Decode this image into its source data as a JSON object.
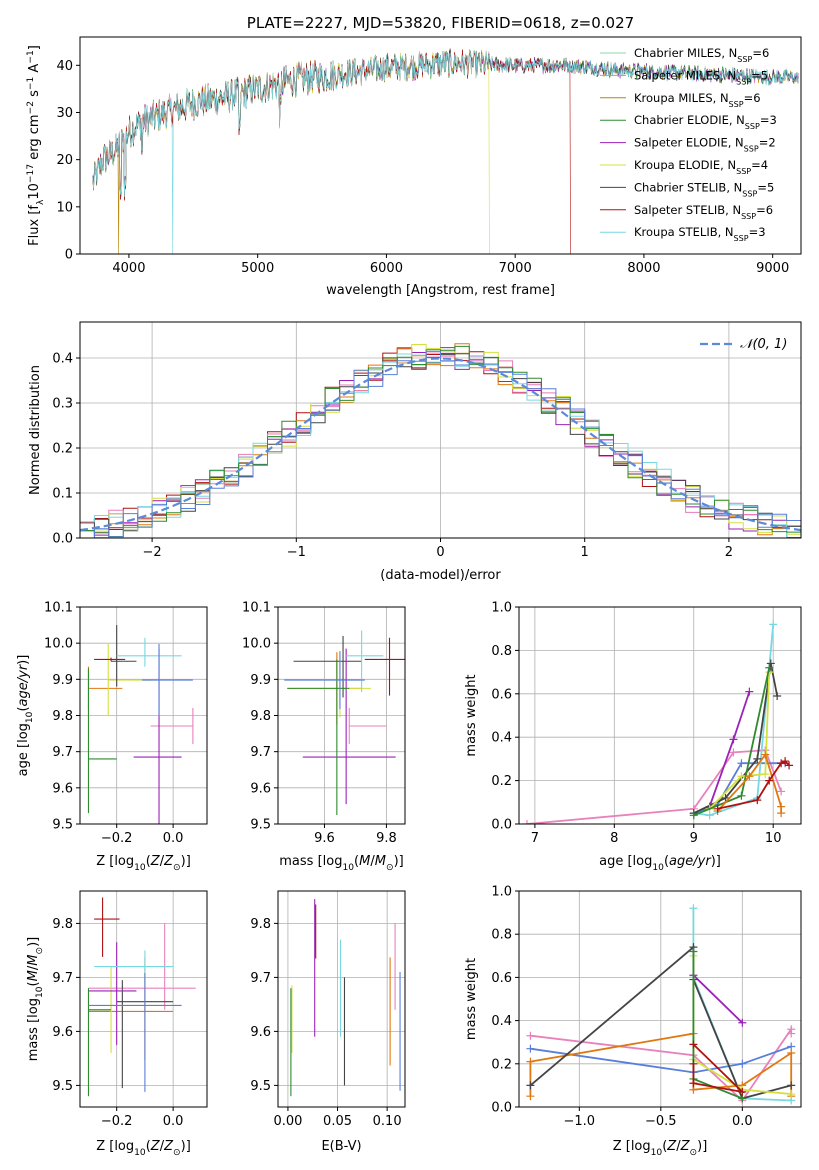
{
  "colors": {
    "chabrier_miles": "#8fd4a8",
    "salpeter_miles": "#e87ab8",
    "kroupa_miles": "#b8860b",
    "chabrier_elodie": "#2e8b2e",
    "salpeter_elodie": "#9b22b8",
    "kroupa_elodie": "#d4e040",
    "chabrier_stelib": "#444444",
    "salpeter_stelib": "#b01010",
    "kroupa_stelib": "#78d8e0",
    "blue": "#5a7fd8",
    "orange": "#e07810",
    "pink": "#e882bc",
    "dashed": "#5a8ad8"
  },
  "chart_data": [
    {
      "panel": "spectrum",
      "type": "line",
      "title": "PLATE=2227, MJD=53820, FIBERID=0618, z=0.027",
      "xlabel": "wavelength [Angstrom, rest frame]",
      "ylabel": "Flux [f_λ 10^-17 erg cm^-2 s^-1 A^-1]",
      "xlim": [
        3620,
        9220
      ],
      "ylim": [
        0,
        46
      ],
      "xticks": [
        4000,
        5000,
        6000,
        7000,
        8000,
        9000
      ],
      "yticks": [
        0,
        10,
        20,
        30,
        40
      ],
      "grid": false,
      "legend": "top-right",
      "series": [
        {
          "name": "Chabrier MILES, N_SSP=6",
          "color": "chabrier_miles"
        },
        {
          "name": "Salpeter MILES, N_SSP=5",
          "color": "salpeter_miles"
        },
        {
          "name": "Kroupa MILES, N_SSP=6",
          "color": "kroupa_miles"
        },
        {
          "name": "Chabrier ELODIE, N_SSP=3",
          "color": "chabrier_elodie"
        },
        {
          "name": "Salpeter ELODIE, N_SSP=2",
          "color": "salpeter_elodie"
        },
        {
          "name": "Kroupa ELODIE, N_SSP=4",
          "color": "kroupa_elodie"
        },
        {
          "name": "Chabrier STELIB, N_SSP=5",
          "color": "chabrier_stelib"
        },
        {
          "name": "Salpeter STELIB, N_SSP=6",
          "color": "salpeter_stelib"
        },
        {
          "name": "Kroupa STELIB, N_SSP=3",
          "color": "kroupa_stelib"
        }
      ],
      "continuum": {
        "x": [
          3720,
          3800,
          3900,
          4000,
          4100,
          4300,
          4500,
          4700,
          5000,
          5300,
          5600,
          6000,
          6500,
          7000,
          7400,
          7800,
          8200,
          8600,
          9000,
          9200
        ],
        "y": [
          15,
          20,
          22,
          26,
          28,
          30,
          32,
          33,
          35,
          37,
          38,
          39.5,
          40.5,
          40,
          40,
          39,
          38.5,
          38,
          37.5,
          37.5
        ]
      },
      "dropouts": [
        {
          "x": 3920,
          "color": "kroupa_miles"
        },
        {
          "x": 4340,
          "color": "kroupa_stelib"
        },
        {
          "x": 6800,
          "color": "kroupa_elodie"
        },
        {
          "x": 7430,
          "color": "salpeter_stelib"
        }
      ]
    },
    {
      "panel": "residual-histogram",
      "type": "line",
      "xlabel": "(data-model)/error",
      "ylabel": "Normed distribution",
      "xlim": [
        -2.5,
        2.5
      ],
      "ylim": [
        0,
        0.48
      ],
      "xticks": [
        -2,
        -1,
        0,
        1,
        2
      ],
      "yticks": [
        0.0,
        0.1,
        0.2,
        0.3,
        0.4
      ],
      "grid": true,
      "legend": "top-right",
      "reference": {
        "name": "𝒩(0, 1)",
        "color": "dashed"
      },
      "bin_width": 0.1,
      "histograms": [
        {
          "color": "salpeter_stelib",
          "shift": 0.0
        },
        {
          "color": "salpeter_elodie",
          "shift": 0.012
        },
        {
          "color": "orange",
          "shift": -0.01
        },
        {
          "color": "salpeter_miles",
          "shift": 0.018
        },
        {
          "color": "kroupa_elodie",
          "shift": -0.015
        },
        {
          "color": "chabrier_stelib",
          "shift": 0.008
        },
        {
          "color": "kroupa_stelib",
          "shift": -0.006
        },
        {
          "color": "chabrier_elodie",
          "shift": 0.004
        },
        {
          "color": "blue",
          "shift": -0.02
        }
      ]
    },
    {
      "panel": "z-vs-age",
      "type": "scatter",
      "xlabel": "Z [log10(Z/Z⊙)]",
      "ylabel": "age [log10(age/yr)]",
      "xlim": [
        -0.33,
        0.12
      ],
      "ylim": [
        9.5,
        10.1
      ],
      "xticks": [
        -0.2,
        0.0
      ],
      "yticks": [
        9.5,
        9.6,
        9.7,
        9.8,
        9.9,
        10.0,
        10.1
      ],
      "grid": true,
      "points": [
        {
          "x": -0.3,
          "xe": [
            0.0,
            0.12
          ],
          "y": 9.875,
          "ye": [
            0.06,
            0.06
          ],
          "color": "orange"
        },
        {
          "x": 0.07,
          "xe": [
            0.15,
            0.0
          ],
          "y": 9.771,
          "ye": [
            0.05,
            0.05
          ],
          "color": "pink"
        },
        {
          "x": -0.23,
          "xe": [
            0.0,
            0.15
          ],
          "y": 9.898,
          "ye": [
            0.1,
            0.1
          ],
          "color": "kroupa_elodie"
        },
        {
          "x": -0.2,
          "xe": [
            0.02,
            0.07
          ],
          "y": 9.95,
          "ye": [
            0.07,
            0.1
          ],
          "color": "chabrier_stelib"
        },
        {
          "x": -0.05,
          "xe": [
            0.09,
            0.08
          ],
          "y": 9.685,
          "ye": [
            0.2,
            0.3
          ],
          "color": "salpeter_elodie"
        },
        {
          "x": -0.3,
          "xe": [
            0.0,
            0.1
          ],
          "y": 9.68,
          "ye": [
            0.15,
            0.25
          ],
          "color": "chabrier_elodie"
        },
        {
          "x": -0.1,
          "xe": [
            0.1,
            0.13
          ],
          "y": 9.965,
          "ye": [
            0.03,
            0.05
          ],
          "color": "kroupa_stelib"
        },
        {
          "x": -0.22,
          "xe": [
            0.06,
            0.05
          ],
          "y": 9.955,
          "ye": [
            0.005,
            0.005
          ],
          "color": "salpeter_stelib"
        },
        {
          "x": -0.05,
          "xe": [
            0.06,
            0.12
          ],
          "y": 9.898,
          "ye": [
            0.1,
            0.1
          ],
          "color": "blue"
        }
      ]
    },
    {
      "panel": "mass-vs-age",
      "type": "scatter",
      "xlabel": "mass [log10(M/M⊙)]",
      "ylabel": "",
      "xlim": [
        9.45,
        9.86
      ],
      "ylim": [
        9.5,
        10.1
      ],
      "xticks": [
        9.6,
        9.8
      ],
      "yticks": [
        9.5,
        9.6,
        9.7,
        9.8,
        9.9,
        10.0,
        10.1
      ],
      "grid": true,
      "points": [
        {
          "x": 9.64,
          "xe": [
            0.16,
            0.08
          ],
          "y": 9.875,
          "ye": [
            0.1,
            0.1
          ],
          "color": "orange"
        },
        {
          "x": 9.68,
          "xe": [
            0.0,
            0.12
          ],
          "y": 9.771,
          "ye": [
            0.05,
            0.05
          ],
          "color": "pink"
        },
        {
          "x": 9.65,
          "xe": [
            0.15,
            0.1
          ],
          "y": 9.875,
          "ye": [
            0.08,
            0.08
          ],
          "color": "kroupa_elodie"
        },
        {
          "x": 9.66,
          "xe": [
            0.16,
            0.06
          ],
          "y": 9.95,
          "ye": [
            0.1,
            0.07
          ],
          "color": "chabrier_stelib"
        },
        {
          "x": 9.67,
          "xe": [
            0.14,
            0.16
          ],
          "y": 9.685,
          "ye": [
            0.13,
            0.3
          ],
          "color": "salpeter_elodie"
        },
        {
          "x": 9.64,
          "xe": [
            0.16,
            0.04
          ],
          "y": 9.875,
          "ye": [
            0.35,
            0.08
          ],
          "color": "chabrier_elodie"
        },
        {
          "x": 9.72,
          "xe": [
            0.05,
            0.07
          ],
          "y": 9.965,
          "ye": [
            0.1,
            0.07
          ],
          "color": "kroupa_stelib"
        },
        {
          "x": 9.81,
          "xe": [
            0.08,
            0.05
          ],
          "y": 9.955,
          "ye": [
            0.1,
            0.06
          ],
          "color": "salpeter_stelib"
        },
        {
          "x": 9.65,
          "xe": [
            0.18,
            0.08
          ],
          "y": 9.898,
          "ye": [
            0.08,
            0.08
          ],
          "color": "blue"
        }
      ]
    },
    {
      "panel": "age-vs-massweight",
      "type": "line",
      "xlabel": "age [log10(age/yr)]",
      "ylabel": "mass weight",
      "xlim": [
        6.8,
        10.35
      ],
      "ylim": [
        0.0,
        1.0
      ],
      "xticks": [
        7,
        8,
        9,
        10
      ],
      "yticks": [
        0.0,
        0.2,
        0.4,
        0.6,
        0.8,
        1.0
      ],
      "grid": true,
      "series": [
        {
          "color": "pink",
          "x": [
            6.9,
            9.0,
            9.5,
            9.9,
            10.1
          ],
          "y": [
            0.0,
            0.07,
            0.33,
            0.34,
            0.15
          ]
        },
        {
          "color": "blue",
          "x": [
            9.0,
            9.3,
            9.6,
            10.15
          ],
          "y": [
            0.05,
            0.09,
            0.28,
            0.28
          ]
        },
        {
          "color": "kroupa_stelib",
          "x": [
            9.0,
            9.2,
            9.8,
            10.0
          ],
          "y": [
            0.05,
            0.04,
            0.12,
            0.92
          ]
        },
        {
          "color": "salpeter_elodie",
          "x": [
            9.2,
            9.5,
            9.7
          ],
          "y": [
            0.08,
            0.39,
            0.61
          ]
        },
        {
          "color": "chabrier_stelib",
          "x": [
            9.0,
            9.4,
            9.8,
            9.97,
            10.05
          ],
          "y": [
            0.05,
            0.12,
            0.3,
            0.74,
            0.59
          ]
        },
        {
          "color": "kroupa_elodie",
          "x": [
            9.2,
            9.6,
            9.9,
            9.95
          ],
          "y": [
            0.07,
            0.22,
            0.23,
            0.7
          ]
        },
        {
          "color": "chabrier_elodie",
          "x": [
            9.0,
            9.6,
            9.95
          ],
          "y": [
            0.04,
            0.13,
            0.72
          ]
        },
        {
          "color": "orange",
          "x": [
            9.3,
            9.7,
            9.9,
            10.1,
            10.1
          ],
          "y": [
            0.06,
            0.22,
            0.32,
            0.08,
            0.05
          ]
        },
        {
          "color": "salpeter_stelib",
          "x": [
            9.3,
            9.8,
            9.95,
            10.1,
            10.15,
            10.2
          ],
          "y": [
            0.07,
            0.11,
            0.2,
            0.28,
            0.29,
            0.27
          ]
        }
      ]
    },
    {
      "panel": "z-vs-mass",
      "type": "scatter",
      "xlabel": "Z [log10(Z/Z⊙)]",
      "ylabel": "mass [log10(M/M⊙)]",
      "xlim": [
        -0.33,
        0.12
      ],
      "ylim": [
        9.46,
        9.86
      ],
      "xticks": [
        -0.2,
        0.0
      ],
      "yticks": [
        9.5,
        9.6,
        9.7,
        9.8
      ],
      "grid": true,
      "points": [
        {
          "x": -0.1,
          "xe": [
            0.2,
            0.1
          ],
          "y": 9.637,
          "ye": [
            0.09,
            0.1
          ],
          "color": "orange"
        },
        {
          "x": -0.03,
          "xe": [
            0.27,
            0.11
          ],
          "y": 9.68,
          "ye": [
            0.04,
            0.12
          ],
          "color": "pink"
        },
        {
          "x": -0.22,
          "xe": [
            0.08,
            0.0
          ],
          "y": 9.64,
          "ye": [
            0.08,
            0.08
          ],
          "color": "kroupa_elodie"
        },
        {
          "x": -0.18,
          "xe": [
            0.02,
            0.18
          ],
          "y": 9.655,
          "ye": [
            0.16,
            0.04
          ],
          "color": "chabrier_stelib"
        },
        {
          "x": -0.2,
          "xe": [
            0.1,
            0.07
          ],
          "y": 9.675,
          "ye": [
            0.1,
            0.09
          ],
          "color": "salpeter_elodie"
        },
        {
          "x": -0.3,
          "xe": [
            0.0,
            0.08
          ],
          "y": 9.64,
          "ye": [
            0.16,
            0.04
          ],
          "color": "chabrier_elodie"
        },
        {
          "x": -0.1,
          "xe": [
            0.18,
            0.1
          ],
          "y": 9.72,
          "ye": [
            0.03,
            0.03
          ],
          "color": "kroupa_stelib"
        },
        {
          "x": -0.25,
          "xe": [
            0.03,
            0.06
          ],
          "y": 9.808,
          "ye": [
            0.07,
            0.04
          ],
          "color": "salpeter_stelib"
        },
        {
          "x": -0.1,
          "xe": [
            0.2,
            0.13
          ],
          "y": 9.648,
          "ye": [
            0.16,
            0.06
          ],
          "color": "blue"
        }
      ]
    },
    {
      "panel": "ebv-vs-mass",
      "type": "scatter",
      "xlabel": "E(B-V)",
      "ylabel": "",
      "xlim": [
        -0.01,
        0.118
      ],
      "ylim": [
        9.46,
        9.86
      ],
      "xticks": [
        0.0,
        0.05,
        0.1
      ],
      "yticks": [
        9.5,
        9.6,
        9.7,
        9.8
      ],
      "grid": true,
      "points": [
        {
          "x": 0.004,
          "y": 9.62,
          "ye": [
            0.06,
            0.065
          ],
          "color": "kroupa_elodie"
        },
        {
          "x": 0.003,
          "y": 9.55,
          "ye": [
            0.07,
            0.13
          ],
          "color": "chabrier_elodie"
        },
        {
          "x": 0.027,
          "y": 9.8,
          "ye": [
            0.21,
            0.045
          ],
          "color": "salpeter_elodie"
        },
        {
          "x": 0.028,
          "y": 9.785,
          "ye": [
            0.05,
            0.05
          ],
          "color": "salpeter_stelib"
        },
        {
          "x": 0.053,
          "y": 9.68,
          "ye": [
            0.09,
            0.09
          ],
          "color": "kroupa_stelib"
        },
        {
          "x": 0.057,
          "y": 9.6,
          "ye": [
            0.1,
            0.1
          ],
          "color": "chabrier_stelib"
        },
        {
          "x": 0.103,
          "y": 9.637,
          "ye": [
            0.1,
            0.1
          ],
          "color": "orange"
        },
        {
          "x": 0.108,
          "y": 9.72,
          "ye": [
            0.08,
            0.08
          ],
          "color": "pink"
        },
        {
          "x": 0.113,
          "y": 9.6,
          "ye": [
            0.11,
            0.11
          ],
          "color": "blue"
        }
      ]
    },
    {
      "panel": "z-vs-massweight",
      "type": "line",
      "xlabel": "Z [log10(Z/Z⊙)]",
      "ylabel": "mass weight",
      "xlim": [
        -1.37,
        0.36
      ],
      "ylim": [
        0.0,
        1.0
      ],
      "xticks": [
        -1.0,
        -0.5,
        0.0
      ],
      "yticks": [
        0.0,
        0.2,
        0.4,
        0.6,
        0.8,
        1.0
      ],
      "grid": true,
      "series": [
        {
          "color": "pink",
          "x": [
            -1.3,
            -0.3,
            0.0,
            0.3,
            0.3
          ],
          "y": [
            0.33,
            0.24,
            0.03,
            0.36,
            0.34
          ]
        },
        {
          "color": "blue",
          "x": [
            -1.3,
            -0.3,
            0.0,
            0.3
          ],
          "y": [
            0.27,
            0.16,
            0.2,
            0.28
          ]
        },
        {
          "color": "orange",
          "x": [
            -1.3,
            -1.3,
            -0.3,
            -0.3,
            0.0,
            0.3,
            0.3
          ],
          "y": [
            0.05,
            0.21,
            0.34,
            0.08,
            0.1,
            0.25,
            0.05
          ]
        },
        {
          "color": "kroupa_stelib",
          "x": [
            -0.3,
            -0.3,
            0.0,
            0.3
          ],
          "y": [
            0.92,
            0.6,
            0.04,
            0.03
          ]
        },
        {
          "color": "salpeter_elodie",
          "x": [
            -0.3,
            0.0
          ],
          "y": [
            0.61,
            0.39
          ]
        },
        {
          "color": "chabrier_stelib",
          "x": [
            -1.3,
            -0.3,
            -0.3,
            0.0,
            0.3
          ],
          "y": [
            0.1,
            0.74,
            0.59,
            0.04,
            0.1
          ]
        },
        {
          "color": "kroupa_elodie",
          "x": [
            -0.3,
            -0.3,
            0.0,
            0.3
          ],
          "y": [
            0.7,
            0.22,
            0.08,
            0.06
          ]
        },
        {
          "color": "chabrier_elodie",
          "x": [
            -0.3,
            -0.3,
            0.0
          ],
          "y": [
            0.72,
            0.13,
            0.04
          ]
        },
        {
          "color": "salpeter_stelib",
          "x": [
            -0.3,
            -0.3,
            0.0,
            -0.3
          ],
          "y": [
            0.2,
            0.11,
            0.07,
            0.29
          ]
        }
      ]
    }
  ]
}
